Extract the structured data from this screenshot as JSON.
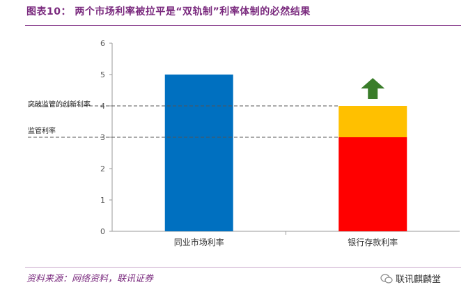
{
  "header": {
    "title": "图表10： 两个市场利率被拉平是“双轨制”利率体制的必然结果"
  },
  "footer": {
    "source": "资料来源：网络资料，联讯证券",
    "watermark": "联讯麒麟堂"
  },
  "colors": {
    "blue": "#0070C0",
    "red": "#FF0000",
    "yellow": "#FFC000",
    "arrow": "#3A7D2A",
    "accent": "#7a2a7e"
  },
  "chart_data": {
    "type": "bar",
    "title": "",
    "categories": [
      "同业市场利率",
      "银行存款利率"
    ],
    "series": [
      {
        "values": [
          5,
          3
        ],
        "colors": [
          "#0070C0",
          "#FF0000"
        ]
      },
      {
        "values": [
          0,
          1
        ],
        "colors": [
          "#FFC000",
          "#FFC000"
        ]
      }
    ],
    "stacked": true,
    "ylim": [
      0,
      6
    ],
    "yticks": [
      0,
      1,
      2,
      3,
      4,
      5,
      6
    ],
    "grid": false,
    "annotations": [
      {
        "label": "突破监管的创新利率",
        "y": 4,
        "style": "dashed"
      },
      {
        "label": "监管利率",
        "y": 3,
        "style": "dashed"
      }
    ],
    "arrow": {
      "category_index": 1,
      "direction": "up",
      "color": "#3A7D2A"
    }
  }
}
